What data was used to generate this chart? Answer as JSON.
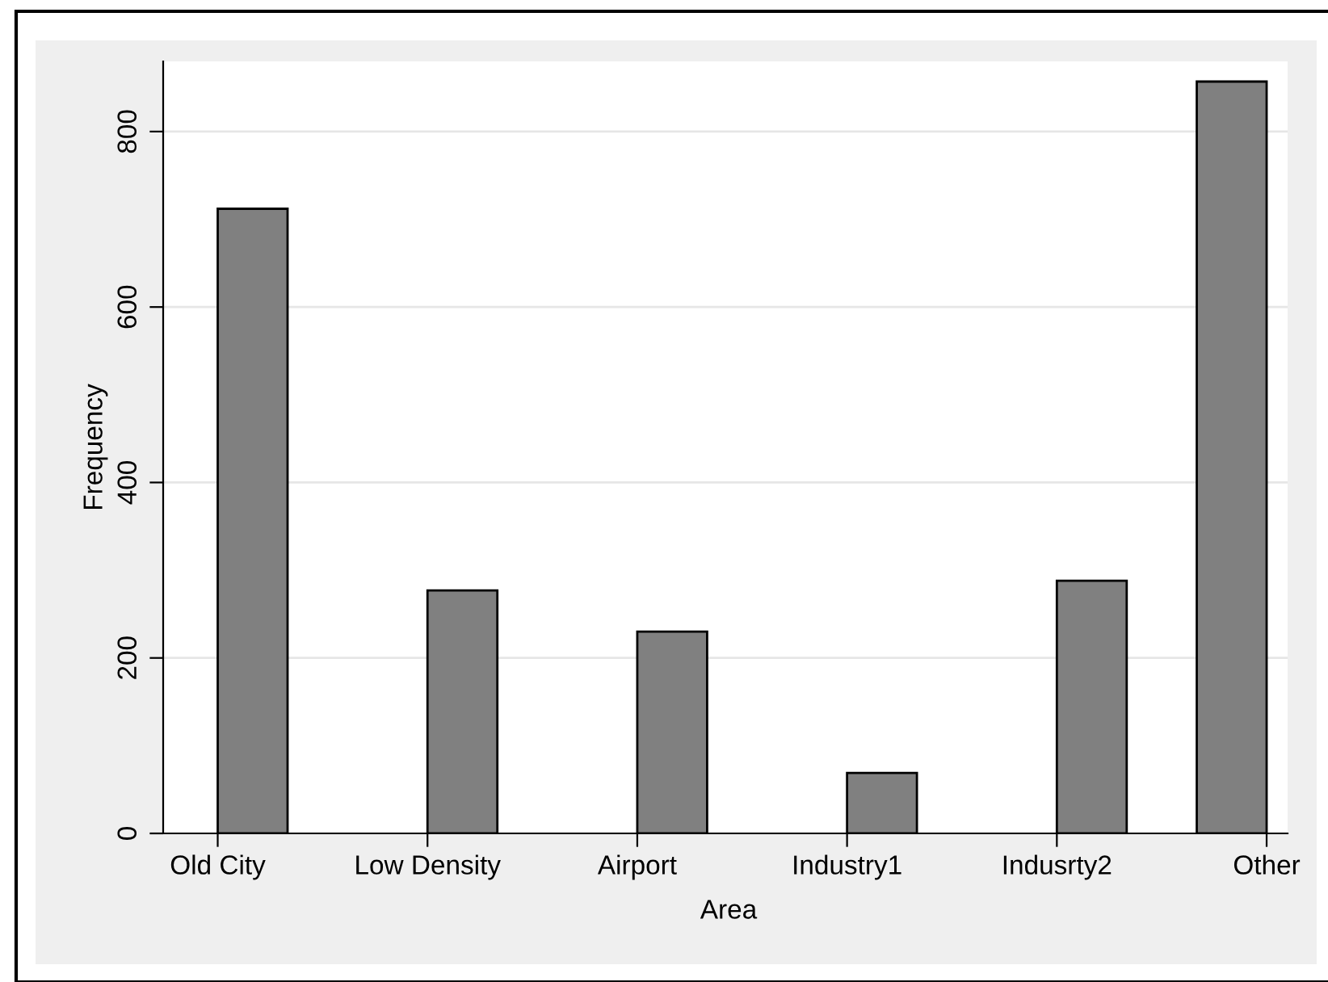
{
  "chart_data": {
    "type": "bar",
    "xlabel": "Area",
    "ylabel": "Frequency",
    "categories": [
      "Old City",
      "Low Density",
      "Airport",
      "Industry1",
      "Indusrty2",
      "Other"
    ],
    "values": [
      712,
      277,
      230,
      69,
      288,
      857
    ],
    "color": "#808080",
    "ylim": [
      0,
      880
    ],
    "yticks": [
      0,
      200,
      400,
      600,
      800
    ],
    "grid": "y"
  }
}
